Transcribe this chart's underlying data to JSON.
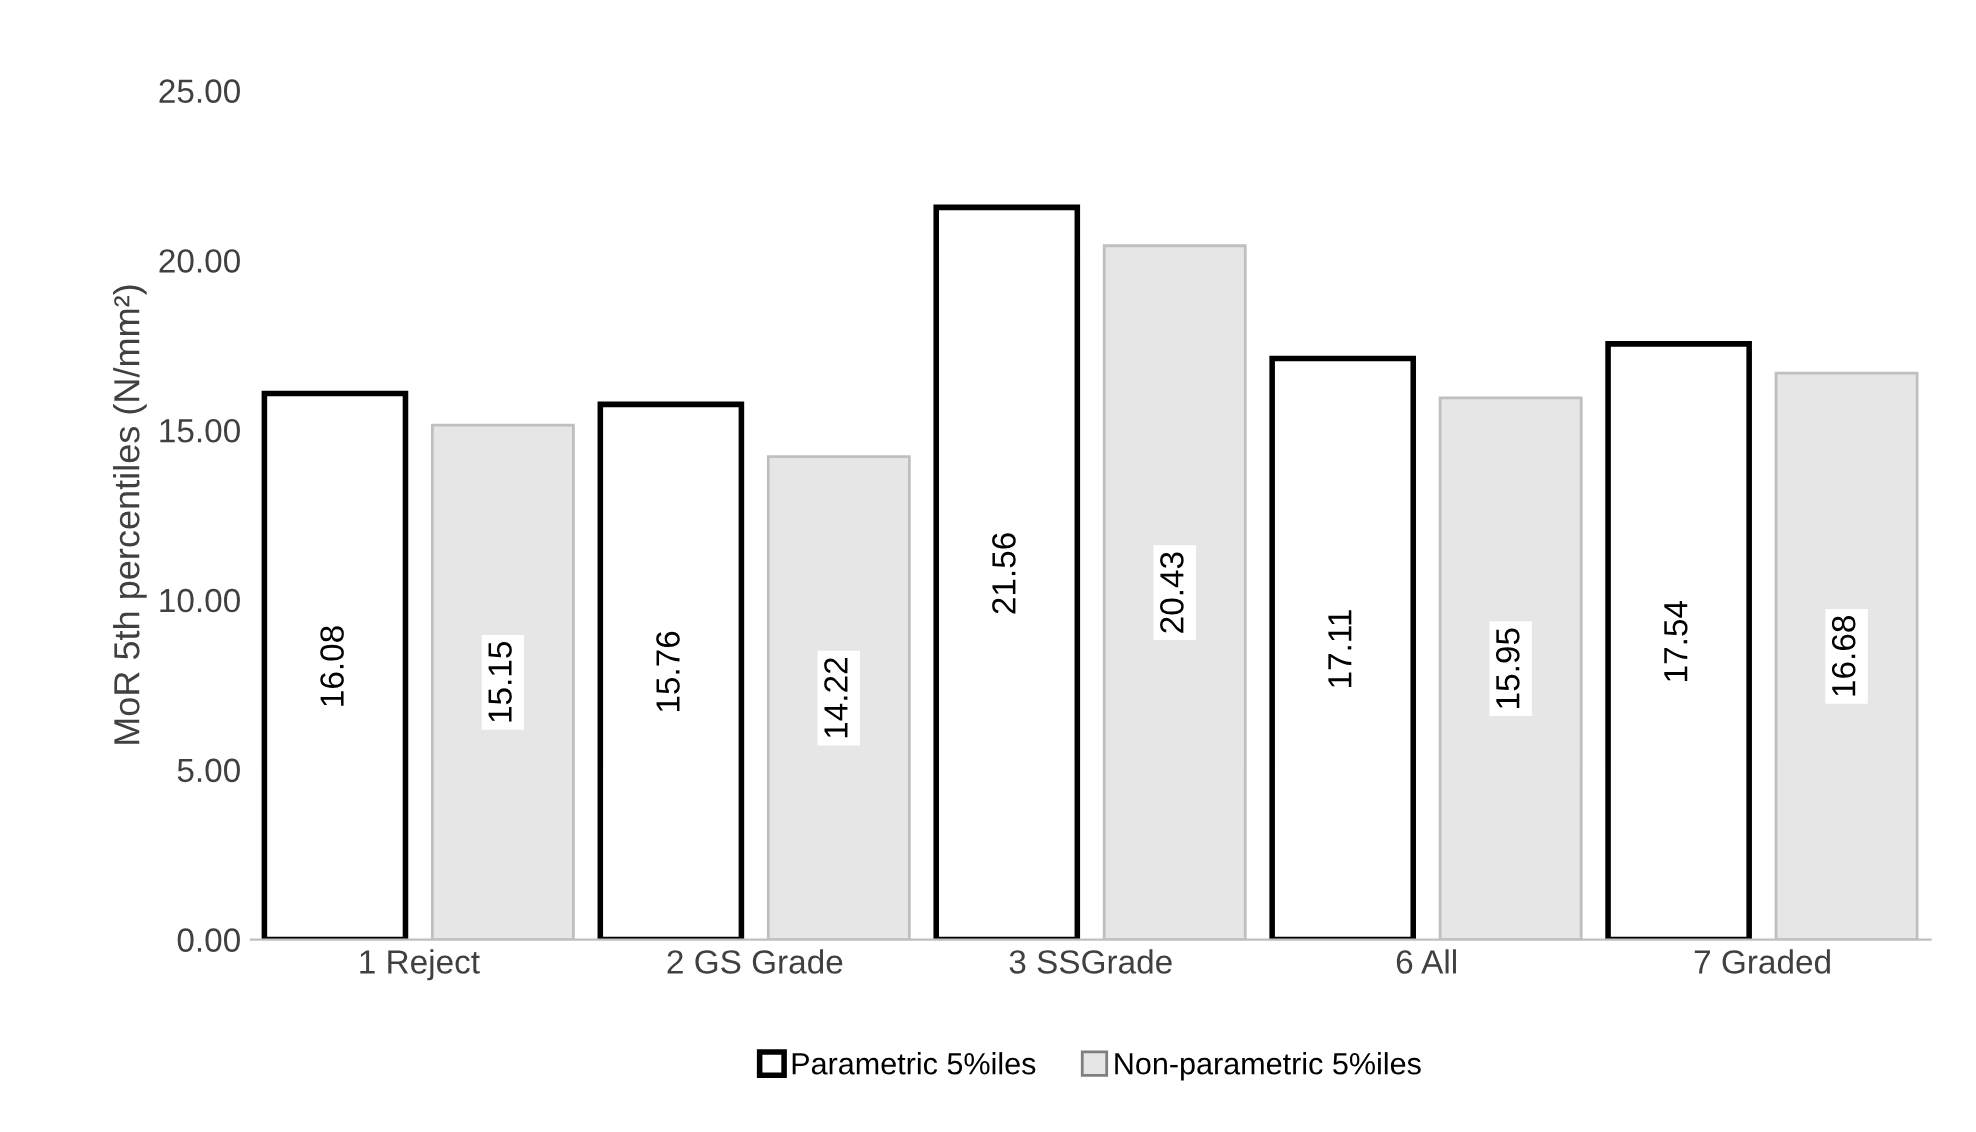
{
  "chart_data": {
    "type": "bar",
    "ylabel": "MoR 5th percentiles (N/mm²)",
    "categories": [
      "1 Reject",
      "2 GS Grade",
      "3 SSGrade",
      "6 All",
      "7 Graded"
    ],
    "series": [
      {
        "name": "Parametric 5%iles",
        "color": "#ffffff",
        "values": [
          16.08,
          15.76,
          21.56,
          17.11,
          17.54
        ]
      },
      {
        "name": "Non-parametric 5%iles",
        "color": "#e7e6e6",
        "values": [
          15.15,
          14.22,
          20.43,
          15.95,
          16.68
        ]
      }
    ],
    "ylim": [
      0,
      25
    ],
    "yticks": [
      {
        "value": 0,
        "label": "0.00"
      },
      {
        "value": 5,
        "label": "5.00"
      },
      {
        "value": 10,
        "label": "10.00"
      },
      {
        "value": 15,
        "label": "15.00"
      },
      {
        "value": 20,
        "label": "20.00"
      },
      {
        "value": 25,
        "label": "25.00"
      }
    ],
    "data_labels": true,
    "grid": false,
    "legend": "bottom"
  }
}
